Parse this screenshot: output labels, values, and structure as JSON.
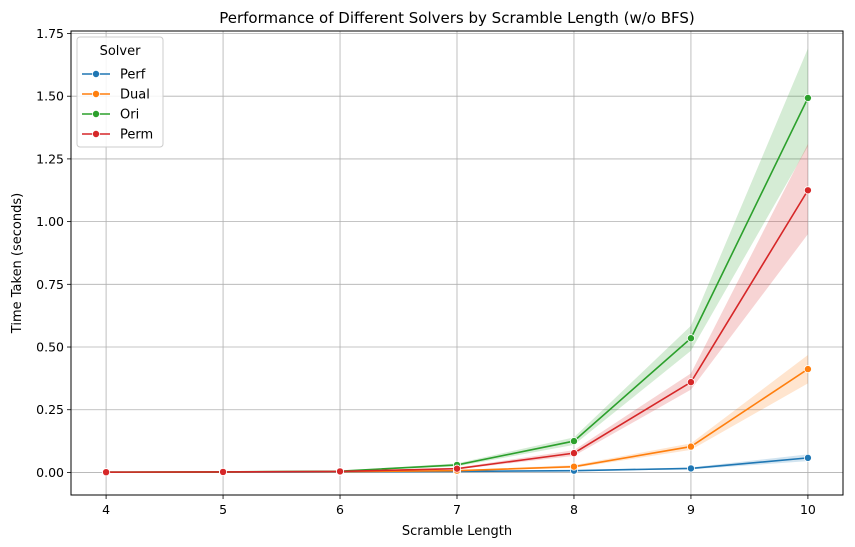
{
  "chart_data": {
    "type": "line",
    "title": "Performance of Different Solvers by Scramble Length (w/o BFS)",
    "xlabel": "Scramble Length",
    "ylabel": "Time Taken (seconds)",
    "x": [
      4,
      5,
      6,
      7,
      8,
      9,
      10
    ],
    "xlim": [
      3.7,
      10.3
    ],
    "ylim": [
      -0.09,
      1.76
    ],
    "xticks": [
      "4",
      "5",
      "6",
      "7",
      "8",
      "9",
      "10"
    ],
    "yticks": [
      "0.00",
      "0.25",
      "0.50",
      "0.75",
      "1.00",
      "1.25",
      "1.50",
      "1.75"
    ],
    "ytick_values": [
      0,
      0.25,
      0.5,
      0.75,
      1.0,
      1.25,
      1.5,
      1.75
    ],
    "grid": true,
    "legend": {
      "title": "Solver",
      "placement": "top-left"
    },
    "series": [
      {
        "name": "Perf",
        "color": "#1f77b4",
        "values": [
          0.001,
          0.001,
          0.002,
          0.004,
          0.007,
          0.016,
          0.058
        ],
        "lower": [
          0.001,
          0.001,
          0.002,
          0.003,
          0.005,
          0.012,
          0.045
        ],
        "upper": [
          0.001,
          0.001,
          0.002,
          0.005,
          0.009,
          0.02,
          0.072
        ]
      },
      {
        "name": "Dual",
        "color": "#ff7f0e",
        "values": [
          0.001,
          0.002,
          0.003,
          0.007,
          0.023,
          0.103,
          0.412
        ],
        "lower": [
          0.001,
          0.001,
          0.002,
          0.005,
          0.018,
          0.09,
          0.355
        ],
        "upper": [
          0.001,
          0.002,
          0.004,
          0.009,
          0.029,
          0.116,
          0.468
        ]
      },
      {
        "name": "Ori",
        "color": "#2ca02c",
        "values": [
          0.001,
          0.002,
          0.005,
          0.03,
          0.125,
          0.535,
          1.493
        ],
        "lower": [
          0.001,
          0.002,
          0.004,
          0.024,
          0.11,
          0.485,
          1.3
        ],
        "upper": [
          0.001,
          0.002,
          0.006,
          0.036,
          0.14,
          0.585,
          1.69
        ]
      },
      {
        "name": "Perm",
        "color": "#d62728",
        "values": [
          0.001,
          0.002,
          0.004,
          0.015,
          0.077,
          0.36,
          1.125
        ],
        "lower": [
          0.001,
          0.001,
          0.003,
          0.012,
          0.066,
          0.33,
          0.95
        ],
        "upper": [
          0.001,
          0.002,
          0.005,
          0.019,
          0.089,
          0.395,
          1.31
        ]
      }
    ]
  }
}
